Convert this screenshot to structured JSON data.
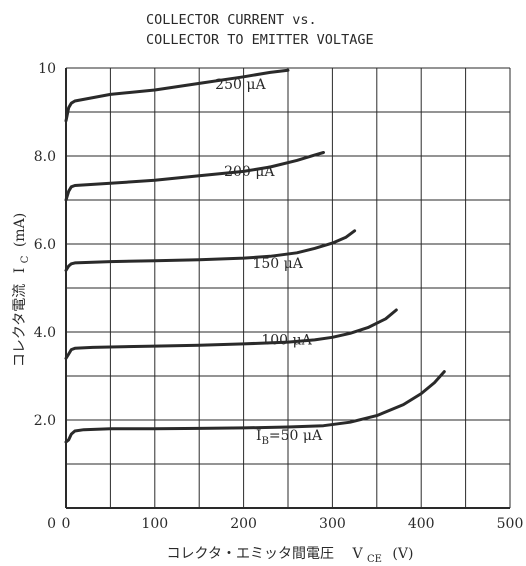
{
  "chart_data": {
    "type": "line",
    "title_lines": [
      "COLLECTOR CURRENT vs.",
      "COLLECTOR TO EMITTER VOLTAGE"
    ],
    "xlabel": {
      "jp": "コレクタ・エミッタ間電圧",
      "sym": "V",
      "sub": "CE",
      "unit": "(V)"
    },
    "ylabel": {
      "jp": "コレクタ電流",
      "sym": "I",
      "sub": "C",
      "unit": "(mA)"
    },
    "xlim": [
      0,
      500
    ],
    "ylim": [
      0,
      10
    ],
    "xticks": [
      0,
      100,
      200,
      300,
      400,
      500
    ],
    "yticks": [
      {
        "value": 2,
        "label": "2.0"
      },
      {
        "value": 4,
        "label": "4.0"
      },
      {
        "value": 6,
        "label": "6.0"
      },
      {
        "value": 8,
        "label": "8.0"
      },
      {
        "value": 10,
        "label": "10"
      }
    ],
    "grid": true,
    "line_color": "#2a2a2a",
    "series": [
      {
        "name": "I_B=50 μA",
        "label": {
          "pre": "I",
          "sub": "B",
          "post": "=50  μA"
        },
        "label_at": [
          214,
          1.55
        ],
        "points": [
          [
            0,
            1.5
          ],
          [
            3,
            1.55
          ],
          [
            6,
            1.68
          ],
          [
            10,
            1.75
          ],
          [
            20,
            1.78
          ],
          [
            50,
            1.8
          ],
          [
            100,
            1.8
          ],
          [
            150,
            1.81
          ],
          [
            200,
            1.82
          ],
          [
            250,
            1.84
          ],
          [
            290,
            1.87
          ],
          [
            320,
            1.95
          ],
          [
            350,
            2.1
          ],
          [
            380,
            2.35
          ],
          [
            400,
            2.6
          ],
          [
            415,
            2.85
          ],
          [
            426,
            3.1
          ]
        ]
      },
      {
        "name": "100 μA",
        "label": {
          "pre": "100 μA",
          "sub": "",
          "post": ""
        },
        "label_at": [
          220,
          3.72
        ],
        "points": [
          [
            0,
            3.4
          ],
          [
            3,
            3.5
          ],
          [
            6,
            3.6
          ],
          [
            10,
            3.63
          ],
          [
            30,
            3.65
          ],
          [
            100,
            3.68
          ],
          [
            150,
            3.7
          ],
          [
            200,
            3.73
          ],
          [
            250,
            3.77
          ],
          [
            280,
            3.82
          ],
          [
            300,
            3.88
          ],
          [
            320,
            3.97
          ],
          [
            340,
            4.1
          ],
          [
            360,
            4.3
          ],
          [
            372,
            4.5
          ]
        ]
      },
      {
        "name": "150 μA",
        "label": {
          "pre": "150 μA",
          "sub": "",
          "post": ""
        },
        "label_at": [
          210,
          5.45
        ],
        "points": [
          [
            0,
            5.4
          ],
          [
            3,
            5.5
          ],
          [
            6,
            5.55
          ],
          [
            10,
            5.57
          ],
          [
            50,
            5.6
          ],
          [
            100,
            5.62
          ],
          [
            150,
            5.64
          ],
          [
            200,
            5.68
          ],
          [
            230,
            5.72
          ],
          [
            260,
            5.8
          ],
          [
            280,
            5.9
          ],
          [
            300,
            6.02
          ],
          [
            315,
            6.15
          ],
          [
            325,
            6.3
          ]
        ]
      },
      {
        "name": "200 μA",
        "label": {
          "pre": "200 μA",
          "sub": "",
          "post": ""
        },
        "label_at": [
          178,
          7.55
        ],
        "points": [
          [
            0,
            7.0
          ],
          [
            3,
            7.2
          ],
          [
            6,
            7.3
          ],
          [
            10,
            7.33
          ],
          [
            50,
            7.38
          ],
          [
            100,
            7.45
          ],
          [
            150,
            7.55
          ],
          [
            200,
            7.65
          ],
          [
            230,
            7.75
          ],
          [
            260,
            7.9
          ],
          [
            280,
            8.02
          ],
          [
            290,
            8.08
          ]
        ]
      },
      {
        "name": "250 μA",
        "label": {
          "pre": "250 μA",
          "sub": "",
          "post": ""
        },
        "label_at": [
          168,
          9.52
        ],
        "points": [
          [
            0,
            8.8
          ],
          [
            3,
            9.1
          ],
          [
            6,
            9.2
          ],
          [
            10,
            9.25
          ],
          [
            50,
            9.4
          ],
          [
            100,
            9.5
          ],
          [
            150,
            9.65
          ],
          [
            200,
            9.8
          ],
          [
            230,
            9.9
          ],
          [
            250,
            9.95
          ]
        ]
      }
    ]
  }
}
